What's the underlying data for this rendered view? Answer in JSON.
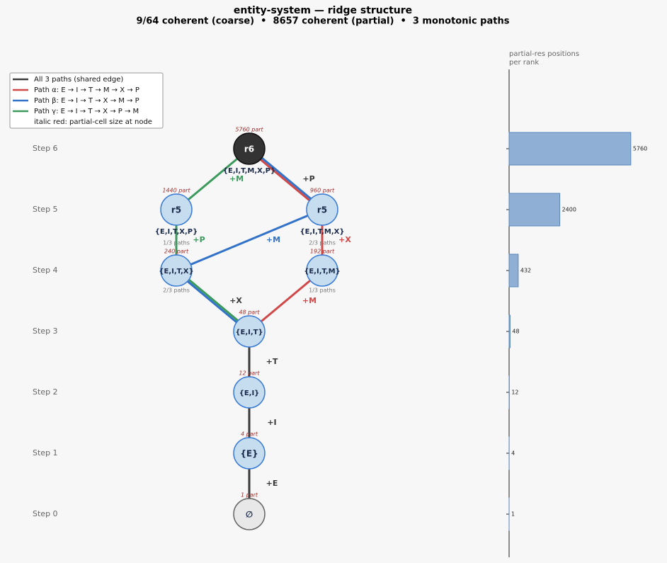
{
  "header": {
    "title": "entity-system — ridge structure",
    "subtitle": "9/64 coherent (coarse)  •  8657 coherent (partial)  •  3 monotonic paths"
  },
  "legend": [
    {
      "label": "All 3 paths (shared edge)",
      "color": "#3a3a3a"
    },
    {
      "label": "Path α: E → I → T → M → X → P",
      "color": "#d04848"
    },
    {
      "label": "Path β: E → I → T → X → M → P",
      "color": "#3272c8"
    },
    {
      "label": "Path γ: E → I → T → X → P → M",
      "color": "#3c9a5c"
    },
    {
      "label": "italic red: partial-cell size at node"
    }
  ],
  "nodes": [
    {
      "label": "r6",
      "size_label": "5760 part",
      "set_label": "{E,I,T,M,X,P}"
    },
    {
      "label": "r5",
      "size_label": "1440 part",
      "set_label": "{E,I,T,X,P}",
      "paths_label": "1/3 paths"
    },
    {
      "label": "r5",
      "size_label": "960 part",
      "set_label": "{E,I,T,M,X}",
      "paths_label": "2/3 paths"
    },
    {
      "label": "{E,I,T,X}",
      "size_label": "240 part",
      "paths_label": "2/3 paths"
    },
    {
      "label": "{E,I,T,M}",
      "size_label": "192 part",
      "paths_label": "1/3 paths"
    },
    {
      "label": "{E,I,T}",
      "size_label": "48 part"
    },
    {
      "label": "{E,I}",
      "size_label": "12 part"
    },
    {
      "label": "{E}",
      "size_label": "4 part"
    },
    {
      "label": "∅",
      "size_label": "1 part"
    }
  ],
  "edge_labels": [
    {
      "text": "+E",
      "color": "#3a3a3a"
    },
    {
      "text": "+I",
      "color": "#3a3a3a"
    },
    {
      "text": "+T",
      "color": "#3a3a3a"
    },
    {
      "text": "+X",
      "color": "#3a3a3a"
    },
    {
      "text": "+M",
      "color": "#d04848"
    },
    {
      "text": "+P",
      "color": "#3c9a5c"
    },
    {
      "text": "+M",
      "color": "#3272c8"
    },
    {
      "text": "+X",
      "color": "#d04848"
    },
    {
      "text": "+M",
      "color": "#3c9a5c"
    },
    {
      "text": "+P",
      "color": "#3a3a3a"
    }
  ],
  "chart_data": {
    "type": "bar",
    "orientation": "horizontal",
    "title": "partial-res positions\nper rank",
    "categories": [
      "Step 0",
      "Step 1",
      "Step 2",
      "Step 3",
      "Step 4",
      "Step 5",
      "Step 6"
    ],
    "values": [
      1,
      4,
      12,
      48,
      432,
      2400,
      5760
    ],
    "color": "#8fb0d4",
    "xlim": [
      0,
      6000
    ]
  }
}
